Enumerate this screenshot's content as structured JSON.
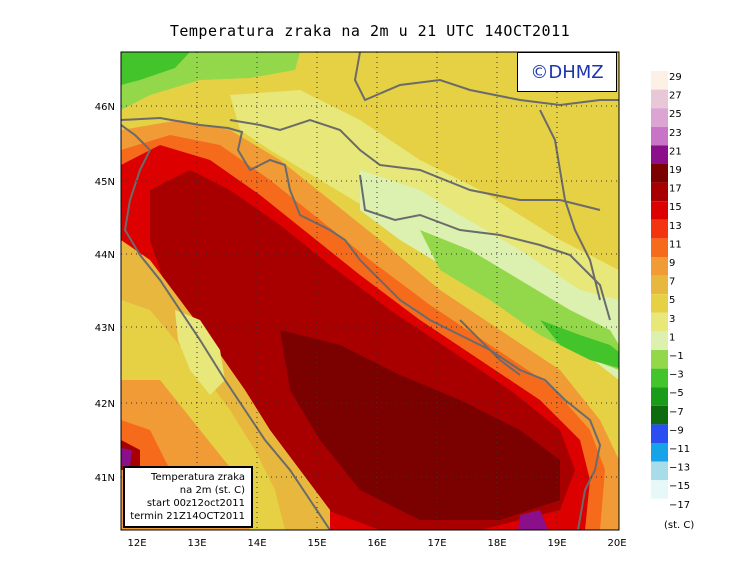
{
  "title": "Temperatura zraka na 2m u 21 UTC 14OCT2011",
  "logo": "©DHMZ",
  "info_box": {
    "line1": "Temperatura zraka",
    "line2": "na 2m (st. C)",
    "line3": "start 00z12oct2011",
    "line4": "termin 21Z14OCT2011"
  },
  "axes": {
    "x_ticks": [
      "12E",
      "13E",
      "14E",
      "15E",
      "16E",
      "17E",
      "18E",
      "19E",
      "20E"
    ],
    "y_ticks": [
      "46N",
      "45N",
      "44N",
      "43N",
      "42N",
      "41N"
    ]
  },
  "legend": {
    "units": "(st. C)",
    "entries": [
      {
        "label": "29",
        "color": "#fdf0e4"
      },
      {
        "label": "27",
        "color": "#e8c7d6"
      },
      {
        "label": "25",
        "color": "#dba4d2"
      },
      {
        "label": "23",
        "color": "#c875c8"
      },
      {
        "label": "21",
        "color": "#8b0f8a"
      },
      {
        "label": "19",
        "color": "#7b0000"
      },
      {
        "label": "17",
        "color": "#a80000"
      },
      {
        "label": "15",
        "color": "#dc0000"
      },
      {
        "label": "13",
        "color": "#f33411"
      },
      {
        "label": "11",
        "color": "#f66a1b"
      },
      {
        "label": "9",
        "color": "#f09b35"
      },
      {
        "label": "7",
        "color": "#e8b83e"
      },
      {
        "label": "5",
        "color": "#e6d044"
      },
      {
        "label": "3",
        "color": "#e8e77a"
      },
      {
        "label": "1",
        "color": "#dcf0b0"
      },
      {
        "label": "−1",
        "color": "#92d84a"
      },
      {
        "label": "−3",
        "color": "#44c42b"
      },
      {
        "label": "−5",
        "color": "#1a9c1a"
      },
      {
        "label": "−7",
        "color": "#0e6b0e"
      },
      {
        "label": "−9",
        "color": "#2a4ef0"
      },
      {
        "label": "−11",
        "color": "#16a3e8"
      },
      {
        "label": "−13",
        "color": "#a8dce8"
      },
      {
        "label": "−15",
        "color": "#e7f8f8"
      },
      {
        "label": "−17",
        "color": "#ffffff"
      }
    ]
  }
}
